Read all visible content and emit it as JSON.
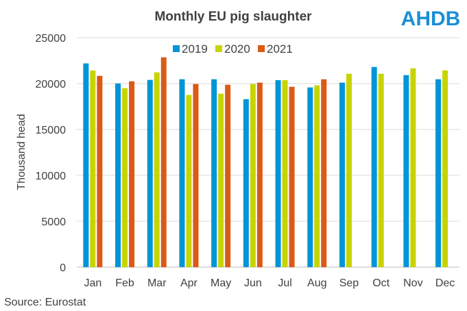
{
  "logo": "AHDB",
  "source": "Source: Eurostat",
  "chart_data": {
    "type": "bar",
    "title": "Monthly  EU pig slaughter",
    "xlabel": "",
    "ylabel": "Thousand head",
    "ylim": [
      0,
      25000
    ],
    "yticks": [
      0,
      5000,
      10000,
      15000,
      20000,
      25000
    ],
    "grid": true,
    "legend_position": "top",
    "categories": [
      "Jan",
      "Feb",
      "Mar",
      "Apr",
      "May",
      "Jun",
      "Jul",
      "Aug",
      "Sep",
      "Oct",
      "Nov",
      "Dec"
    ],
    "series": [
      {
        "name": "2019",
        "color": "#0095D6",
        "values": [
          22200,
          20020,
          20400,
          20470,
          20470,
          18300,
          20370,
          19580,
          20100,
          21810,
          20920,
          20470
        ]
      },
      {
        "name": "2020",
        "color": "#C8D400",
        "values": [
          21420,
          19500,
          21220,
          18760,
          18900,
          19950,
          20370,
          19800,
          21070,
          21070,
          21660,
          21440
        ]
      },
      {
        "name": "2021",
        "color": "#DC5A14",
        "values": [
          20840,
          20250,
          22860,
          19950,
          19870,
          20100,
          19650,
          20470,
          null,
          null,
          null,
          null
        ]
      }
    ]
  }
}
